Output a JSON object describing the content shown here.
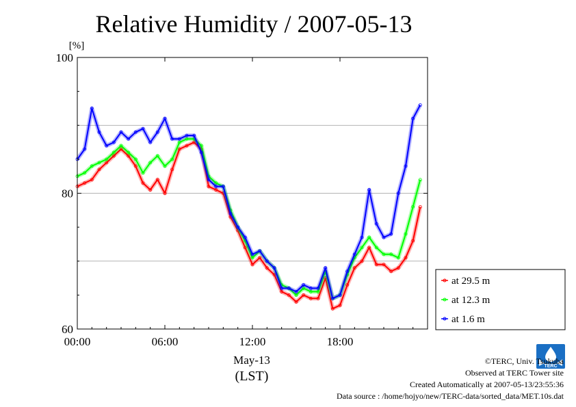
{
  "chart_data": {
    "type": "line",
    "title": "Relative Humidity / 2007-05-13",
    "ylabel": "[%]",
    "xlabel": "May-13",
    "xlabel2": "(LST)",
    "ylim": [
      60,
      100
    ],
    "xlim": [
      0,
      24
    ],
    "yticks": [
      "60",
      "80",
      "100"
    ],
    "ygrid": [
      70,
      80,
      90
    ],
    "xticks": [
      "00:00",
      "06:00",
      "12:00",
      "18:00"
    ],
    "xtick_hours": [
      0,
      6,
      12,
      18
    ],
    "grid": true,
    "legend_position": "bottom-right",
    "series": [
      {
        "name": "at 29.5 m",
        "color": "#ff0000",
        "x": [
          0,
          0.5,
          1,
          1.5,
          2,
          2.5,
          3,
          3.5,
          4,
          4.5,
          5,
          5.5,
          6,
          6.5,
          7,
          7.5,
          8,
          8.5,
          9,
          9.5,
          10,
          10.5,
          11,
          11.5,
          12,
          12.5,
          13,
          13.5,
          14,
          14.5,
          15,
          15.5,
          16,
          16.5,
          17,
          17.5,
          18,
          18.5,
          19,
          19.5,
          20,
          20.5,
          21,
          21.5,
          22,
          22.5,
          23,
          23.5
        ],
        "values": [
          81,
          81.5,
          82,
          83.5,
          84.5,
          85.5,
          86.5,
          85.5,
          84,
          81.5,
          80.5,
          82,
          80,
          83.5,
          86.5,
          87,
          87.5,
          86.5,
          81,
          80.5,
          80,
          76.5,
          74.5,
          72,
          69.5,
          70.5,
          69,
          68,
          65.5,
          65,
          64,
          65,
          64.5,
          64.5,
          67.5,
          63,
          63.5,
          66.5,
          69,
          70,
          72,
          69.5,
          69.5,
          68.5,
          69,
          70.5,
          73,
          78
        ]
      },
      {
        "name": "at 12.3 m",
        "color": "#00ff00",
        "x": [
          0,
          0.5,
          1,
          1.5,
          2,
          2.5,
          3,
          3.5,
          4,
          4.5,
          5,
          5.5,
          6,
          6.5,
          7,
          7.5,
          8,
          8.5,
          9,
          9.5,
          10,
          10.5,
          11,
          11.5,
          12,
          12.5,
          13,
          13.5,
          14,
          14.5,
          15,
          15.5,
          16,
          16.5,
          17,
          17.5,
          18,
          18.5,
          19,
          19.5,
          20,
          20.5,
          21,
          21.5,
          22,
          22.5,
          23,
          23.5
        ],
        "values": [
          82.5,
          83,
          84,
          84.5,
          85,
          86,
          87,
          86,
          85,
          83,
          84.5,
          85.5,
          84,
          85,
          87.5,
          88,
          88,
          87,
          82.5,
          81.5,
          81,
          77.5,
          75,
          73,
          70.5,
          71.5,
          70,
          69,
          66.5,
          66,
          65,
          66,
          65.5,
          65.5,
          68.5,
          64.5,
          65,
          68,
          70.5,
          72,
          73.5,
          72,
          71,
          71,
          70.5,
          74,
          78,
          82
        ]
      },
      {
        "name": "at 1.6 m",
        "color": "#0000ff",
        "x": [
          0,
          0.5,
          1,
          1.5,
          2,
          2.5,
          3,
          3.5,
          4,
          4.5,
          5,
          5.5,
          6,
          6.5,
          7,
          7.5,
          8,
          8.5,
          9,
          9.5,
          10,
          10.5,
          11,
          11.5,
          12,
          12.5,
          13,
          13.5,
          14,
          14.5,
          15,
          15.5,
          16,
          16.5,
          17,
          17.5,
          18,
          18.5,
          19,
          19.5,
          20,
          20.5,
          21,
          21.5,
          22,
          22.5,
          23,
          23.5
        ],
        "values": [
          85,
          86.5,
          92.5,
          89,
          87,
          87.5,
          89,
          88,
          89,
          89.5,
          87.5,
          89,
          91,
          88,
          88,
          88.5,
          88.5,
          86,
          82,
          81,
          81,
          77,
          75,
          73.5,
          71,
          71.5,
          70,
          69,
          66,
          66,
          65.5,
          66.5,
          66,
          66,
          69,
          64.5,
          65,
          68.5,
          71,
          73.5,
          80.5,
          75.5,
          73.5,
          74,
          80,
          84,
          91,
          93
        ]
      }
    ]
  },
  "footer": {
    "copyright": "©TERC, Univ. Tsukuba",
    "site": "Observed at TERC Tower site",
    "created": "Created Automatically at 2007-05-13/23:55:36",
    "source": "Data source : /home/hojyo/new/TERC-data/sorted_data/MET.10s.dat"
  },
  "logo": {
    "text": "TERC",
    "color": "#1a6fc4"
  }
}
